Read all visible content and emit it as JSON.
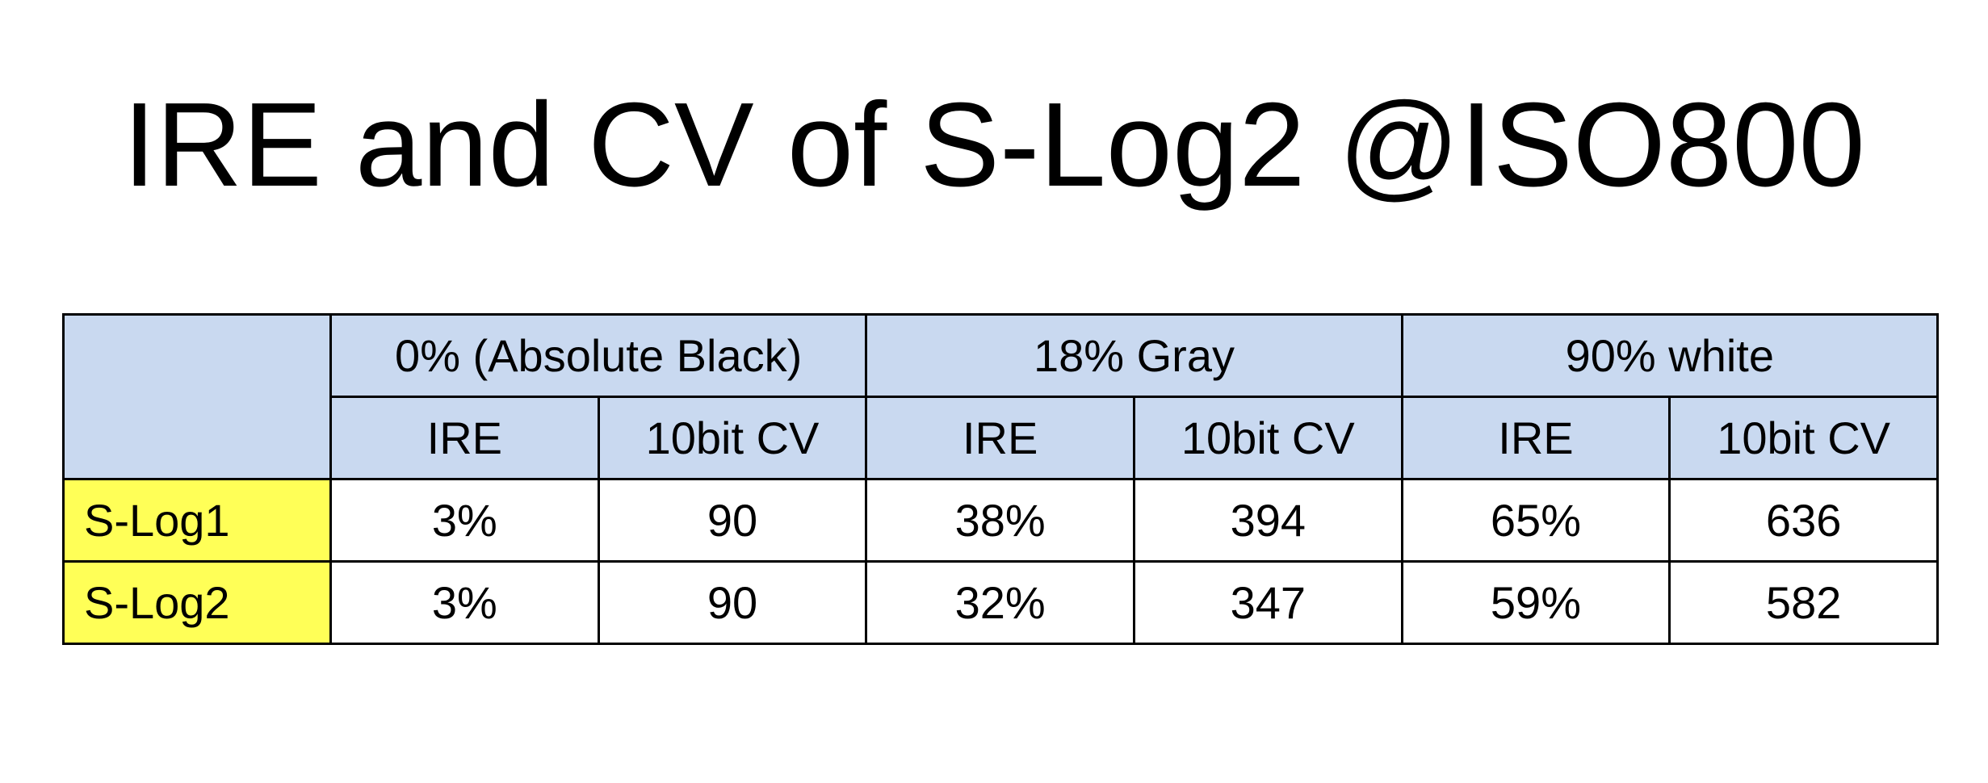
{
  "title": "IRE and CV of S-Log2 @ISO800",
  "table": {
    "group_headers": [
      "0% (Absolute Black)",
      "18% Gray",
      "90% white"
    ],
    "sub_headers": [
      "IRE",
      "10bit CV",
      "IRE",
      "10bit CV",
      "IRE",
      "10bit CV"
    ],
    "rows": [
      {
        "label": "S-Log1",
        "cells": [
          "3%",
          "90",
          "38%",
          "394",
          "65%",
          "636"
        ]
      },
      {
        "label": "S-Log2",
        "cells": [
          "3%",
          "90",
          "32%",
          "347",
          "59%",
          "582"
        ]
      }
    ]
  }
}
